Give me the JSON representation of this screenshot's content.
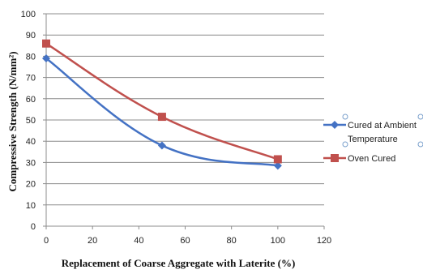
{
  "chart_data": {
    "type": "line",
    "xlabel": "Replacement of Coarse Aggregate with Laterite (%)",
    "ylabel": "Compressive Strength (N/mm²)",
    "xlim": [
      0,
      120
    ],
    "ylim": [
      0,
      100
    ],
    "x_ticks": [
      "0",
      "20",
      "40",
      "60",
      "80",
      "100",
      "120"
    ],
    "y_ticks": [
      "0",
      "10",
      "20",
      "30",
      "40",
      "50",
      "60",
      "70",
      "80",
      "90",
      "100"
    ],
    "grid": true,
    "legend_position": "right",
    "series": [
      {
        "name": "Cured at Ambient Temperature",
        "name_lines": [
          "Cured at Ambient",
          "Temperature"
        ],
        "color": "#4472C4",
        "marker": "diamond",
        "x": [
          0,
          50,
          100
        ],
        "y": [
          79,
          38,
          28.5
        ]
      },
      {
        "name": "Oven Cured",
        "name_lines": [
          "Oven Cured"
        ],
        "color": "#C0504D",
        "marker": "square",
        "x": [
          0,
          50,
          100
        ],
        "y": [
          86,
          51.5,
          31.5
        ]
      }
    ]
  }
}
